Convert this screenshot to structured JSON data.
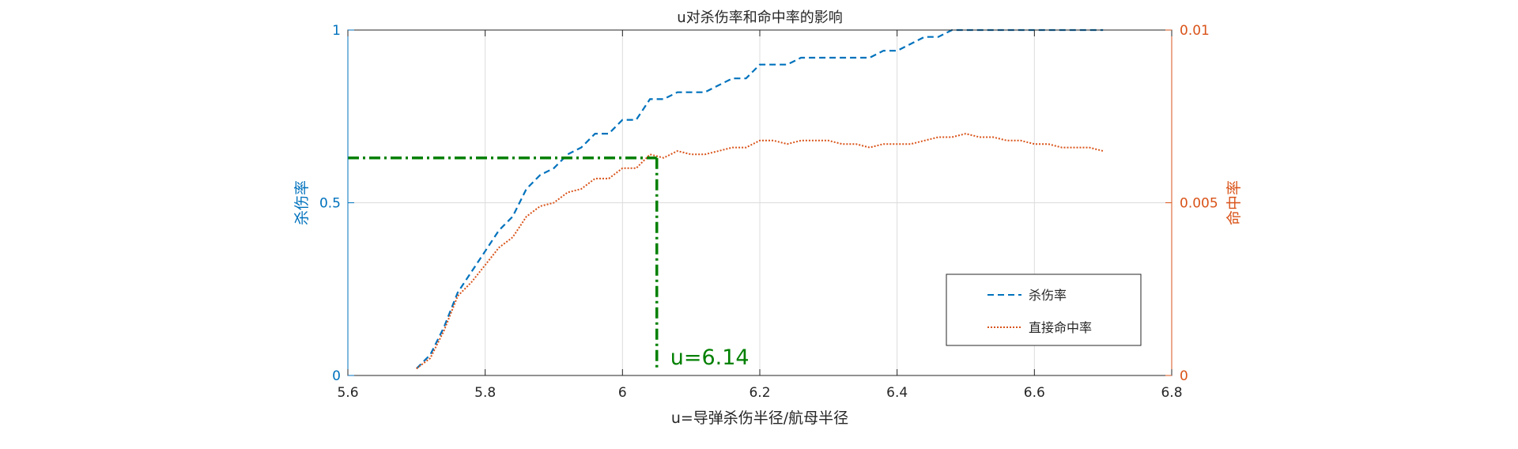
{
  "chart_data": {
    "type": "line",
    "title": "u对杀伤率和命中率的影响",
    "xlabel": "u=导弹杀伤半径/航母半径",
    "ylabel_left": "杀伤率",
    "ylabel_right": "命中率",
    "xlim": [
      5.6,
      6.8
    ],
    "ylim_left": [
      0,
      1
    ],
    "ylim_right": [
      0,
      0.01
    ],
    "x_ticks": [
      "5.6",
      "5.8",
      "6",
      "6.2",
      "6.4",
      "6.6",
      "6.8"
    ],
    "y_left_ticks": [
      "0",
      "0.5",
      "1"
    ],
    "y_right_ticks": [
      "0",
      "0.005",
      "0.01"
    ],
    "grid": true,
    "legend_position": "bottom-right",
    "colors": {
      "kill": "#0072BD",
      "hit": "#D95319",
      "annotation": "#008000"
    },
    "series": [
      {
        "name": "杀伤率",
        "axis": "left",
        "style": "dashed",
        "x": [
          5.7,
          5.72,
          5.74,
          5.76,
          5.78,
          5.8,
          5.82,
          5.84,
          5.86,
          5.88,
          5.9,
          5.92,
          5.94,
          5.96,
          5.98,
          6.0,
          6.02,
          6.04,
          6.06,
          6.08,
          6.1,
          6.12,
          6.14,
          6.16,
          6.18,
          6.2,
          6.22,
          6.24,
          6.26,
          6.28,
          6.3,
          6.32,
          6.34,
          6.36,
          6.38,
          6.4,
          6.42,
          6.44,
          6.46,
          6.48,
          6.5,
          6.52,
          6.54,
          6.56,
          6.58,
          6.6,
          6.62,
          6.64,
          6.66,
          6.68,
          6.7
        ],
        "values": [
          0.02,
          0.06,
          0.14,
          0.24,
          0.3,
          0.36,
          0.42,
          0.46,
          0.54,
          0.58,
          0.6,
          0.64,
          0.66,
          0.7,
          0.7,
          0.74,
          0.74,
          0.8,
          0.8,
          0.82,
          0.82,
          0.82,
          0.84,
          0.86,
          0.86,
          0.9,
          0.9,
          0.9,
          0.92,
          0.92,
          0.92,
          0.92,
          0.92,
          0.92,
          0.94,
          0.94,
          0.96,
          0.98,
          0.98,
          1.0,
          1.0,
          1.0,
          1.0,
          1.0,
          1.0,
          1.0,
          1.0,
          1.0,
          1.0,
          1.0,
          1.0
        ]
      },
      {
        "name": "直接命中率",
        "axis": "right",
        "style": "dotted",
        "x": [
          5.7,
          5.72,
          5.74,
          5.76,
          5.78,
          5.8,
          5.82,
          5.84,
          5.86,
          5.88,
          5.9,
          5.92,
          5.94,
          5.96,
          5.98,
          6.0,
          6.02,
          6.04,
          6.06,
          6.08,
          6.1,
          6.12,
          6.14,
          6.16,
          6.18,
          6.2,
          6.22,
          6.24,
          6.26,
          6.28,
          6.3,
          6.32,
          6.34,
          6.36,
          6.38,
          6.4,
          6.42,
          6.44,
          6.46,
          6.48,
          6.5,
          6.52,
          6.54,
          6.56,
          6.58,
          6.6,
          6.62,
          6.64,
          6.66,
          6.68,
          6.7
        ],
        "values": [
          0.0002,
          0.0005,
          0.0013,
          0.0023,
          0.0027,
          0.0032,
          0.0037,
          0.004,
          0.0046,
          0.0049,
          0.005,
          0.0053,
          0.0054,
          0.0057,
          0.0057,
          0.006,
          0.006,
          0.0064,
          0.0063,
          0.0065,
          0.0064,
          0.0064,
          0.0065,
          0.0066,
          0.0066,
          0.0068,
          0.0068,
          0.0067,
          0.0068,
          0.0068,
          0.0068,
          0.0067,
          0.0067,
          0.0066,
          0.0067,
          0.0067,
          0.0067,
          0.0068,
          0.0069,
          0.0069,
          0.007,
          0.0069,
          0.0069,
          0.0068,
          0.0068,
          0.0067,
          0.0067,
          0.0066,
          0.0066,
          0.0066,
          0.0065
        ]
      }
    ],
    "annotation": {
      "text": "u=6.14",
      "x": 6.05,
      "y_left": 0.63
    }
  }
}
